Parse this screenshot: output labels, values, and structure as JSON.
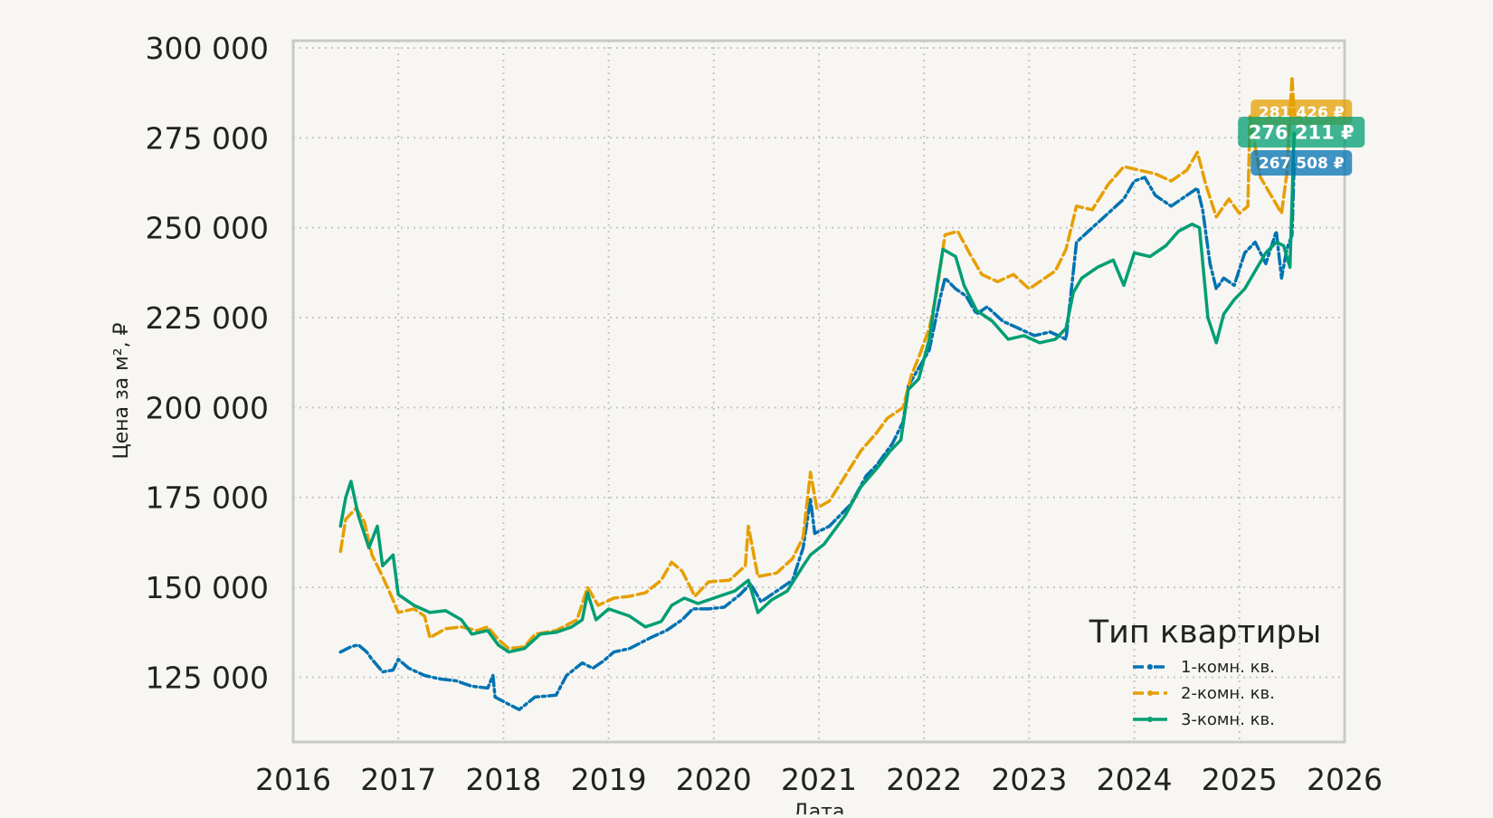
{
  "chart_data": {
    "type": "line",
    "title": "",
    "xlabel": "Дата",
    "ylabel": "Цена за м², ₽",
    "xlim": [
      2016,
      2026
    ],
    "ylim": [
      107000,
      302000
    ],
    "x_ticks": [
      2016,
      2017,
      2018,
      2019,
      2020,
      2021,
      2022,
      2023,
      2024,
      2025,
      2026
    ],
    "x_tick_labels": [
      "2016",
      "2017",
      "2018",
      "2019",
      "2020",
      "2021",
      "2022",
      "2023",
      "2024",
      "2025",
      "2026"
    ],
    "y_ticks": [
      125000,
      150000,
      175000,
      200000,
      225000,
      250000,
      275000,
      300000
    ],
    "y_tick_labels": [
      "125 000",
      "150 000",
      "175 000",
      "200 000",
      "225 000",
      "250 000",
      "275 000",
      "300 000"
    ],
    "grid": true,
    "legend": {
      "title": "Тип квартиры",
      "placement": "lower-right"
    },
    "series": [
      {
        "name": "1-комн. кв.",
        "color": "#0072b2",
        "dash": "dash-dot",
        "last_label": "267 508 ₽",
        "points": [
          [
            2016.45,
            132000
          ],
          [
            2016.55,
            133500
          ],
          [
            2016.62,
            134000
          ],
          [
            2016.7,
            132000
          ],
          [
            2016.75,
            130000
          ],
          [
            2016.85,
            126500
          ],
          [
            2016.95,
            127000
          ],
          [
            2017.0,
            130000
          ],
          [
            2017.1,
            127500
          ],
          [
            2017.25,
            125500
          ],
          [
            2017.4,
            124500
          ],
          [
            2017.55,
            124000
          ],
          [
            2017.7,
            122500
          ],
          [
            2017.85,
            122000
          ],
          [
            2017.9,
            125500
          ],
          [
            2017.92,
            119500
          ],
          [
            2018.05,
            117500
          ],
          [
            2018.15,
            116000
          ],
          [
            2018.3,
            119500
          ],
          [
            2018.5,
            120000
          ],
          [
            2018.6,
            125500
          ],
          [
            2018.75,
            129000
          ],
          [
            2018.85,
            127500
          ],
          [
            2018.95,
            129500
          ],
          [
            2019.05,
            132000
          ],
          [
            2019.2,
            133000
          ],
          [
            2019.4,
            136000
          ],
          [
            2019.55,
            138000
          ],
          [
            2019.7,
            141000
          ],
          [
            2019.8,
            144000
          ],
          [
            2019.95,
            144000
          ],
          [
            2020.1,
            144500
          ],
          [
            2020.25,
            148000
          ],
          [
            2020.35,
            151000
          ],
          [
            2020.45,
            146000
          ],
          [
            2020.6,
            149000
          ],
          [
            2020.75,
            152000
          ],
          [
            2020.85,
            161000
          ],
          [
            2020.92,
            174500
          ],
          [
            2020.96,
            165000
          ],
          [
            2021.1,
            167000
          ],
          [
            2021.3,
            173000
          ],
          [
            2021.45,
            181000
          ],
          [
            2021.55,
            184000
          ],
          [
            2021.7,
            190000
          ],
          [
            2021.8,
            196000
          ],
          [
            2021.85,
            206000
          ],
          [
            2021.95,
            211000
          ],
          [
            2022.05,
            216000
          ],
          [
            2022.15,
            230000
          ],
          [
            2022.2,
            236000
          ],
          [
            2022.3,
            233000
          ],
          [
            2022.4,
            231000
          ],
          [
            2022.5,
            226000
          ],
          [
            2022.6,
            228000
          ],
          [
            2022.75,
            224000
          ],
          [
            2022.9,
            222000
          ],
          [
            2023.05,
            220000
          ],
          [
            2023.2,
            221000
          ],
          [
            2023.35,
            219000
          ],
          [
            2023.45,
            246000
          ],
          [
            2023.6,
            250000
          ],
          [
            2023.75,
            254000
          ],
          [
            2023.9,
            258000
          ],
          [
            2024.0,
            263000
          ],
          [
            2024.1,
            264000
          ],
          [
            2024.2,
            259000
          ],
          [
            2024.35,
            256000
          ],
          [
            2024.5,
            259000
          ],
          [
            2024.6,
            261000
          ],
          [
            2024.65,
            255000
          ],
          [
            2024.72,
            240000
          ],
          [
            2024.78,
            233000
          ],
          [
            2024.85,
            236000
          ],
          [
            2024.95,
            234000
          ],
          [
            2025.05,
            243000
          ],
          [
            2025.15,
            246000
          ],
          [
            2025.25,
            240000
          ],
          [
            2025.35,
            249000
          ],
          [
            2025.4,
            236000
          ],
          [
            2025.45,
            244000
          ],
          [
            2025.5,
            248000
          ],
          [
            2025.52,
            267508
          ]
        ]
      },
      {
        "name": "2-комн. кв.",
        "color": "#e69f00",
        "dash": "dashed",
        "last_label": "281 426 ₽",
        "points": [
          [
            2016.45,
            160000
          ],
          [
            2016.5,
            169000
          ],
          [
            2016.6,
            172000
          ],
          [
            2016.68,
            168000
          ],
          [
            2016.75,
            159000
          ],
          [
            2016.85,
            153000
          ],
          [
            2016.92,
            148500
          ],
          [
            2017.0,
            143000
          ],
          [
            2017.15,
            144000
          ],
          [
            2017.25,
            142000
          ],
          [
            2017.3,
            136000
          ],
          [
            2017.45,
            138500
          ],
          [
            2017.6,
            139000
          ],
          [
            2017.75,
            138000
          ],
          [
            2017.85,
            139000
          ],
          [
            2017.95,
            135500
          ],
          [
            2018.05,
            133000
          ],
          [
            2018.2,
            133500
          ],
          [
            2018.3,
            137000
          ],
          [
            2018.5,
            138000
          ],
          [
            2018.7,
            141000
          ],
          [
            2018.8,
            150000
          ],
          [
            2018.9,
            145000
          ],
          [
            2019.05,
            147000
          ],
          [
            2019.2,
            147500
          ],
          [
            2019.35,
            148500
          ],
          [
            2019.5,
            152000
          ],
          [
            2019.6,
            157000
          ],
          [
            2019.7,
            154500
          ],
          [
            2019.82,
            147500
          ],
          [
            2019.95,
            151500
          ],
          [
            2020.15,
            152000
          ],
          [
            2020.3,
            156000
          ],
          [
            2020.33,
            167000
          ],
          [
            2020.42,
            153000
          ],
          [
            2020.6,
            154000
          ],
          [
            2020.75,
            158000
          ],
          [
            2020.85,
            164000
          ],
          [
            2020.92,
            182000
          ],
          [
            2020.98,
            172000
          ],
          [
            2021.1,
            174000
          ],
          [
            2021.25,
            181000
          ],
          [
            2021.4,
            188000
          ],
          [
            2021.55,
            193000
          ],
          [
            2021.65,
            197000
          ],
          [
            2021.8,
            200000
          ],
          [
            2021.88,
            209000
          ],
          [
            2021.95,
            214000
          ],
          [
            2022.05,
            222000
          ],
          [
            2022.12,
            232000
          ],
          [
            2022.2,
            248000
          ],
          [
            2022.32,
            249000
          ],
          [
            2022.45,
            242000
          ],
          [
            2022.55,
            237000
          ],
          [
            2022.7,
            235000
          ],
          [
            2022.85,
            237000
          ],
          [
            2023.0,
            233000
          ],
          [
            2023.15,
            236000
          ],
          [
            2023.25,
            238000
          ],
          [
            2023.35,
            244000
          ],
          [
            2023.45,
            256000
          ],
          [
            2023.6,
            255000
          ],
          [
            2023.75,
            262000
          ],
          [
            2023.9,
            267000
          ],
          [
            2024.05,
            266000
          ],
          [
            2024.2,
            265000
          ],
          [
            2024.35,
            263000
          ],
          [
            2024.5,
            266000
          ],
          [
            2024.6,
            271000
          ],
          [
            2024.68,
            262000
          ],
          [
            2024.78,
            253000
          ],
          [
            2024.9,
            258000
          ],
          [
            2025.0,
            254000
          ],
          [
            2025.08,
            256000
          ],
          [
            2025.1,
            281000
          ],
          [
            2025.2,
            264000
          ],
          [
            2025.3,
            259000
          ],
          [
            2025.4,
            254000
          ],
          [
            2025.45,
            265000
          ],
          [
            2025.5,
            292000
          ],
          [
            2025.52,
            281426
          ]
        ]
      },
      {
        "name": "3-комн. кв.",
        "color": "#009e73",
        "dash": "solid",
        "last_label": "276 211 ₽",
        "points": [
          [
            2016.45,
            167000
          ],
          [
            2016.5,
            175000
          ],
          [
            2016.55,
            179500
          ],
          [
            2016.62,
            170000
          ],
          [
            2016.72,
            161000
          ],
          [
            2016.8,
            167000
          ],
          [
            2016.85,
            156000
          ],
          [
            2016.95,
            159000
          ],
          [
            2017.0,
            148000
          ],
          [
            2017.15,
            145000
          ],
          [
            2017.3,
            143000
          ],
          [
            2017.45,
            143500
          ],
          [
            2017.6,
            141000
          ],
          [
            2017.7,
            137000
          ],
          [
            2017.85,
            138000
          ],
          [
            2017.95,
            134000
          ],
          [
            2018.05,
            132000
          ],
          [
            2018.2,
            133000
          ],
          [
            2018.35,
            137000
          ],
          [
            2018.5,
            137500
          ],
          [
            2018.65,
            139000
          ],
          [
            2018.75,
            141000
          ],
          [
            2018.8,
            148500
          ],
          [
            2018.88,
            141000
          ],
          [
            2019.0,
            144000
          ],
          [
            2019.2,
            142000
          ],
          [
            2019.35,
            139000
          ],
          [
            2019.5,
            140500
          ],
          [
            2019.6,
            145000
          ],
          [
            2019.72,
            147000
          ],
          [
            2019.85,
            145500
          ],
          [
            2020.0,
            147000
          ],
          [
            2020.2,
            149000
          ],
          [
            2020.33,
            152000
          ],
          [
            2020.42,
            143000
          ],
          [
            2020.55,
            146500
          ],
          [
            2020.7,
            149000
          ],
          [
            2020.85,
            156000
          ],
          [
            2020.92,
            159000
          ],
          [
            2021.05,
            162000
          ],
          [
            2021.25,
            170000
          ],
          [
            2021.4,
            178000
          ],
          [
            2021.55,
            183000
          ],
          [
            2021.68,
            188000
          ],
          [
            2021.78,
            191000
          ],
          [
            2021.85,
            205000
          ],
          [
            2021.95,
            208000
          ],
          [
            2022.05,
            219000
          ],
          [
            2022.12,
            233000
          ],
          [
            2022.18,
            244000
          ],
          [
            2022.3,
            242000
          ],
          [
            2022.38,
            234000
          ],
          [
            2022.5,
            227000
          ],
          [
            2022.65,
            224000
          ],
          [
            2022.8,
            219000
          ],
          [
            2022.95,
            220000
          ],
          [
            2023.1,
            218000
          ],
          [
            2023.25,
            219000
          ],
          [
            2023.35,
            222000
          ],
          [
            2023.42,
            232000
          ],
          [
            2023.5,
            236000
          ],
          [
            2023.65,
            239000
          ],
          [
            2023.8,
            241000
          ],
          [
            2023.9,
            234000
          ],
          [
            2024.0,
            243000
          ],
          [
            2024.15,
            242000
          ],
          [
            2024.3,
            245000
          ],
          [
            2024.42,
            249000
          ],
          [
            2024.55,
            251000
          ],
          [
            2024.62,
            250000
          ],
          [
            2024.7,
            225000
          ],
          [
            2024.78,
            218000
          ],
          [
            2024.85,
            226000
          ],
          [
            2024.95,
            230000
          ],
          [
            2025.05,
            233000
          ],
          [
            2025.15,
            238000
          ],
          [
            2025.25,
            243000
          ],
          [
            2025.35,
            246000
          ],
          [
            2025.42,
            245000
          ],
          [
            2025.48,
            239000
          ],
          [
            2025.52,
            276211
          ]
        ]
      }
    ]
  }
}
